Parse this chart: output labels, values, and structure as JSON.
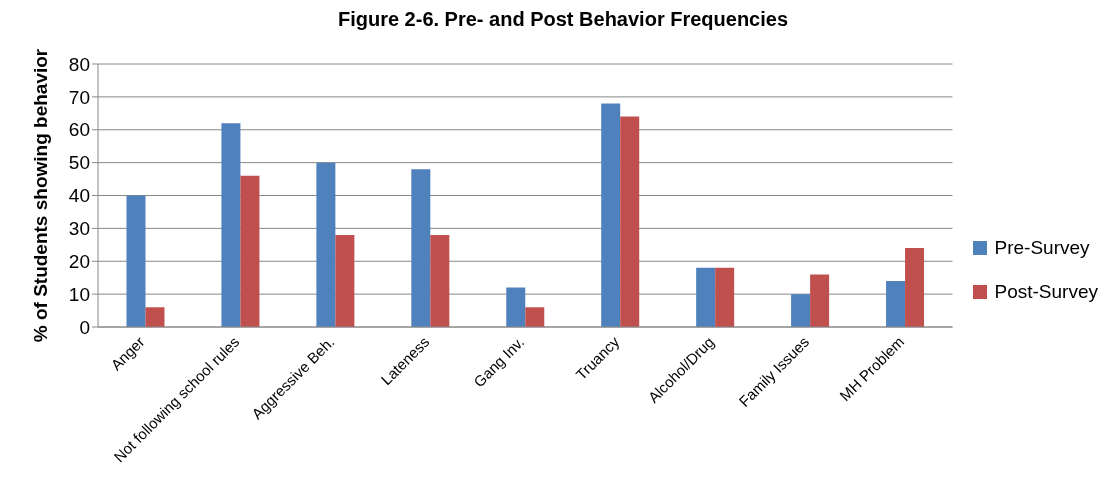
{
  "chart_data": {
    "type": "bar",
    "title": "Figure 2-6. Pre- and Post Behavior Frequencies",
    "ylabel": "% of Students showing behavior",
    "categories": [
      "Anger",
      "Not following school rules",
      "Aggressive Beh.",
      "Lateness",
      "Gang Inv.",
      "Truancy",
      "Alcohol/Drug",
      "Family Issues",
      "MH Problem"
    ],
    "series": [
      {
        "name": "Pre-Survey",
        "color": "#4f81bd",
        "values": [
          40,
          62,
          50,
          48,
          12,
          68,
          18,
          10,
          14
        ]
      },
      {
        "name": "Post-Survey",
        "color": "#c0504d",
        "values": [
          6,
          46,
          28,
          28,
          6,
          64,
          18,
          16,
          24
        ]
      }
    ],
    "ylim": [
      0,
      80
    ],
    "yticks": [
      0,
      10,
      20,
      30,
      40,
      50,
      60,
      70,
      80
    ],
    "grid": "y",
    "legend": "right"
  }
}
